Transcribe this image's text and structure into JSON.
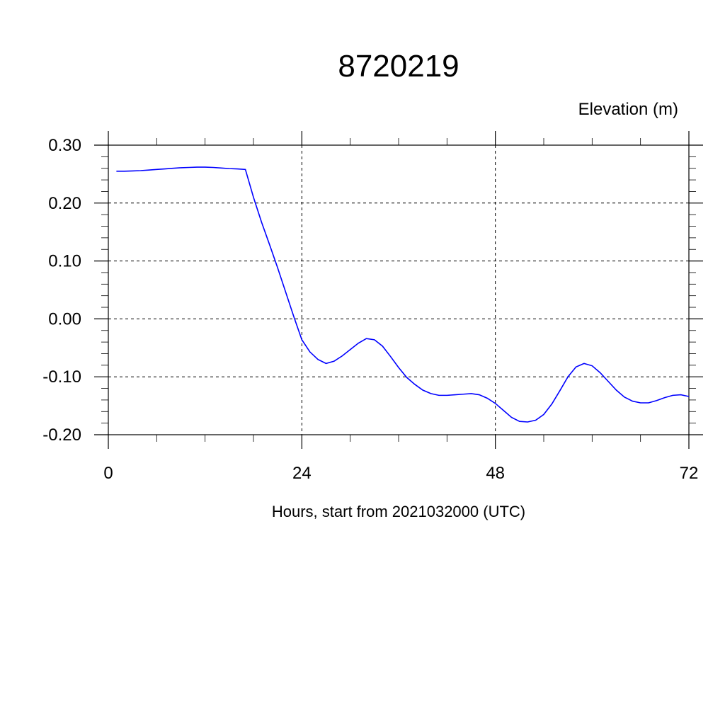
{
  "chart_data": {
    "type": "line",
    "title": "8720219",
    "ylabel": "Elevation (m)",
    "xlabel": "Hours, start from 2021032000 (UTC)",
    "xlim": [
      0,
      72
    ],
    "ylim": [
      -0.2,
      0.3
    ],
    "x_ticks": [
      0,
      24,
      48,
      72
    ],
    "x_tick_labels": [
      "0",
      "24",
      "48",
      "72"
    ],
    "y_ticks": [
      -0.2,
      -0.1,
      0.0,
      0.1,
      0.2,
      0.3
    ],
    "y_tick_labels": [
      "-0.20",
      "-0.10",
      "0.00",
      "0.10",
      "0.20",
      "0.30"
    ],
    "grid": true,
    "series_color": "#0000ff",
    "x": [
      1,
      2,
      3,
      4,
      5,
      6,
      7,
      8,
      9,
      10,
      11,
      12,
      13,
      14,
      15,
      16,
      17,
      18,
      19,
      20,
      21,
      22,
      23,
      24,
      25,
      26,
      27,
      28,
      29,
      30,
      31,
      32,
      33,
      34,
      35,
      36,
      37,
      38,
      39,
      40,
      41,
      42,
      43,
      44,
      45,
      46,
      47,
      48,
      49,
      50,
      51,
      52,
      53,
      54,
      55,
      56,
      57,
      58,
      59,
      60,
      61,
      62,
      63,
      64,
      65,
      66,
      67,
      68,
      69,
      70,
      71,
      72
    ],
    "y": [
      0.255,
      0.255,
      0.2555,
      0.256,
      0.257,
      0.258,
      0.259,
      0.26,
      0.261,
      0.2615,
      0.262,
      0.262,
      0.2615,
      0.2605,
      0.2595,
      0.259,
      0.258,
      0.21,
      0.167,
      0.128,
      0.088,
      0.046,
      0.004,
      -0.036,
      -0.057,
      -0.07,
      -0.077,
      -0.073,
      -0.064,
      -0.053,
      -0.042,
      -0.034,
      -0.036,
      -0.047,
      -0.065,
      -0.084,
      -0.101,
      -0.113,
      -0.123,
      -0.129,
      -0.132,
      -0.132,
      -0.131,
      -0.13,
      -0.129,
      -0.131,
      -0.137,
      -0.146,
      -0.158,
      -0.17,
      -0.177,
      -0.178,
      -0.175,
      -0.165,
      -0.147,
      -0.124,
      -0.1,
      -0.083,
      -0.077,
      -0.081,
      -0.093,
      -0.108,
      -0.123,
      -0.135,
      -0.142,
      -0.145,
      -0.145,
      -0.141,
      -0.136,
      -0.132,
      -0.131,
      -0.134
    ]
  }
}
